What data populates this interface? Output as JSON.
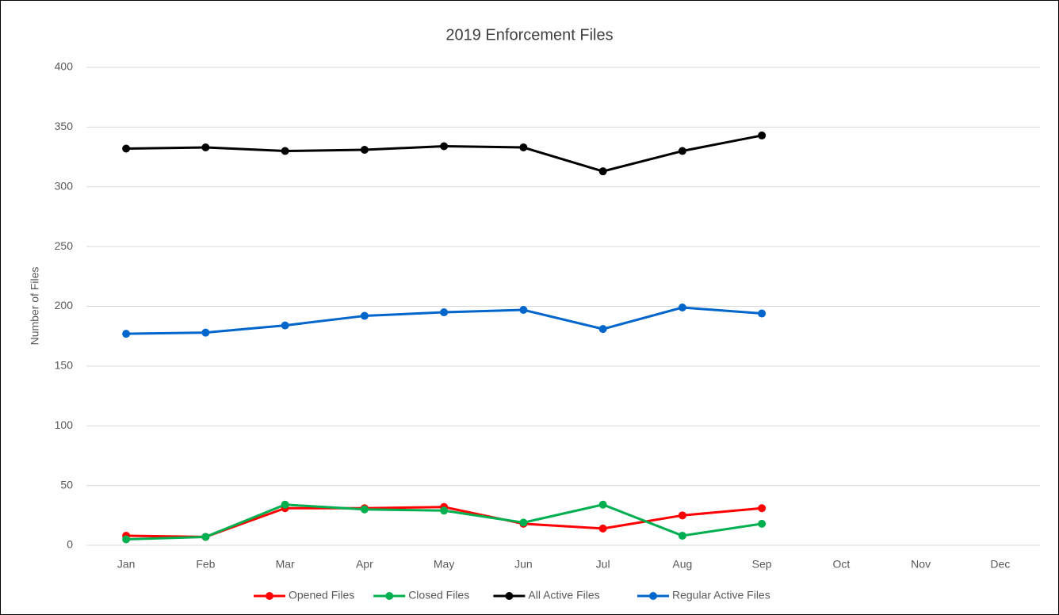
{
  "chart_data": {
    "type": "line",
    "title": "2019 Enforcement Files",
    "y_label": "Number of Files",
    "categories": [
      "Jan",
      "Feb",
      "Mar",
      "Apr",
      "May",
      "Jun",
      "Jul",
      "Aug",
      "Sep",
      "Oct",
      "Nov",
      "Dec"
    ],
    "series": [
      {
        "name": "Opened Files",
        "color": "#ff0000",
        "values": [
          8,
          7,
          31,
          31,
          32,
          18,
          14,
          25,
          31,
          null,
          null,
          null
        ]
      },
      {
        "name": "Closed Files",
        "color": "#00b050",
        "values": [
          5,
          7,
          34,
          30,
          29,
          19,
          34,
          8,
          18,
          null,
          null,
          null
        ]
      },
      {
        "name": "All Active Files",
        "color": "#000000",
        "values": [
          332,
          333,
          330,
          331,
          334,
          333,
          313,
          330,
          343,
          null,
          null,
          null
        ]
      },
      {
        "name": "Regular Active Files",
        "color": "#0066cc",
        "values": [
          177,
          178,
          184,
          192,
          195,
          197,
          181,
          199,
          194,
          null,
          null,
          null
        ]
      }
    ],
    "ylim": [
      0,
      400
    ],
    "yticks": [
      0,
      50,
      100,
      150,
      200,
      250,
      300,
      350,
      400
    ],
    "grid": true,
    "legend": "bottom"
  }
}
